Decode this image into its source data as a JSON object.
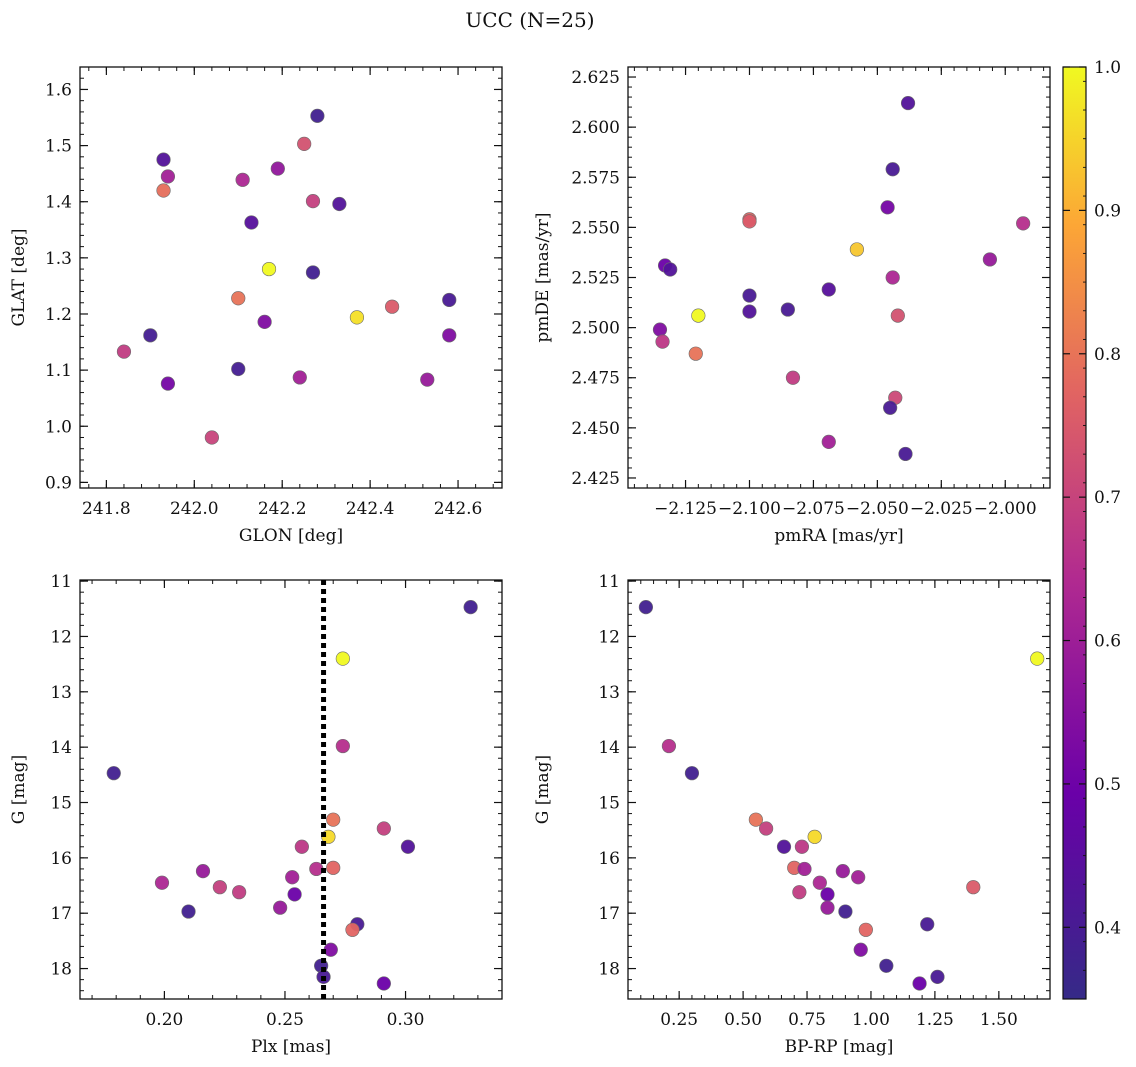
{
  "figure": {
    "suptitle": "UCC (N=25)"
  },
  "colormap": {
    "name": "plasma",
    "stops": [
      "#352a87",
      "#6a00a8",
      "#b12a90",
      "#e16462",
      "#fca636",
      "#f0f921"
    ],
    "range": [
      0.35,
      1.0
    ],
    "ticks": [
      0.4,
      0.5,
      0.6,
      0.7,
      0.8,
      0.9,
      1.0
    ],
    "tick_labels": [
      "0.4",
      "0.5",
      "0.6",
      "0.7",
      "0.8",
      "0.9",
      "1.0"
    ]
  },
  "chart_data": [
    {
      "type": "scatter",
      "xlabel": "GLON [deg]",
      "ylabel": "GLAT [deg]",
      "xlim": [
        241.74,
        242.7
      ],
      "ylim": [
        0.89,
        1.64
      ],
      "xticks": [
        241.8,
        242.0,
        242.2,
        242.4,
        242.6
      ],
      "xtick_labels": [
        "241.8",
        "242.0",
        "242.2",
        "242.4",
        "242.6"
      ],
      "yticks": [
        0.9,
        1.0,
        1.1,
        1.2,
        1.3,
        1.4,
        1.5,
        1.6
      ],
      "ytick_labels": [
        "0.9",
        "1.0",
        "1.1",
        "1.2",
        "1.3",
        "1.4",
        "1.5",
        "1.6"
      ],
      "y_inverted": false,
      "points": [
        {
          "x": 242.28,
          "y": 1.553,
          "c": 0.38
        },
        {
          "x": 242.25,
          "y": 1.503,
          "c": 0.7
        },
        {
          "x": 241.93,
          "y": 1.475,
          "c": 0.42
        },
        {
          "x": 242.19,
          "y": 1.459,
          "c": 0.55
        },
        {
          "x": 241.94,
          "y": 1.445,
          "c": 0.58
        },
        {
          "x": 242.11,
          "y": 1.439,
          "c": 0.6
        },
        {
          "x": 241.93,
          "y": 1.42,
          "c": 0.76
        },
        {
          "x": 242.27,
          "y": 1.401,
          "c": 0.66
        },
        {
          "x": 242.33,
          "y": 1.396,
          "c": 0.42
        },
        {
          "x": 242.13,
          "y": 1.363,
          "c": 0.43
        },
        {
          "x": 242.17,
          "y": 1.28,
          "c": 1.0
        },
        {
          "x": 242.27,
          "y": 1.274,
          "c": 0.38
        },
        {
          "x": 242.1,
          "y": 1.228,
          "c": 0.77
        },
        {
          "x": 242.58,
          "y": 1.225,
          "c": 0.4
        },
        {
          "x": 242.45,
          "y": 1.213,
          "c": 0.72
        },
        {
          "x": 242.37,
          "y": 1.194,
          "c": 0.96
        },
        {
          "x": 242.16,
          "y": 1.186,
          "c": 0.52
        },
        {
          "x": 241.9,
          "y": 1.162,
          "c": 0.39
        },
        {
          "x": 242.58,
          "y": 1.162,
          "c": 0.52
        },
        {
          "x": 241.84,
          "y": 1.133,
          "c": 0.65
        },
        {
          "x": 242.1,
          "y": 1.102,
          "c": 0.39
        },
        {
          "x": 242.24,
          "y": 1.087,
          "c": 0.58
        },
        {
          "x": 241.94,
          "y": 1.076,
          "c": 0.5
        },
        {
          "x": 242.53,
          "y": 1.083,
          "c": 0.56
        },
        {
          "x": 242.04,
          "y": 0.98,
          "c": 0.67
        }
      ]
    },
    {
      "type": "scatter",
      "xlabel": "pmRA [mas/yr]",
      "ylabel": "pmDE [mas/yr]",
      "xlim": [
        -2.1475,
        -1.9825
      ],
      "ylim": [
        2.42,
        2.63
      ],
      "xticks": [
        -2.125,
        -2.1,
        -2.075,
        -2.05,
        -2.025,
        -2.0
      ],
      "xtick_labels": [
        "−2.125",
        "−2.100",
        "−2.075",
        "−2.050",
        "−2.025",
        "−2.000"
      ],
      "yticks": [
        2.425,
        2.45,
        2.475,
        2.5,
        2.525,
        2.55,
        2.575,
        2.6,
        2.625
      ],
      "ytick_labels": [
        "2.425",
        "2.450",
        "2.475",
        "2.500",
        "2.525",
        "2.550",
        "2.575",
        "2.600",
        "2.625"
      ],
      "y_inverted": false,
      "points": [
        {
          "x": -2.038,
          "y": 2.612,
          "c": 0.42
        },
        {
          "x": -2.044,
          "y": 2.579,
          "c": 0.4
        },
        {
          "x": -2.046,
          "y": 2.56,
          "c": 0.5
        },
        {
          "x": -2.1,
          "y": 2.554,
          "c": 0.74
        },
        {
          "x": -2.1,
          "y": 2.553,
          "c": 0.72
        },
        {
          "x": -1.993,
          "y": 2.552,
          "c": 0.62
        },
        {
          "x": -2.058,
          "y": 2.539,
          "c": 0.92
        },
        {
          "x": -2.006,
          "y": 2.534,
          "c": 0.56
        },
        {
          "x": -2.133,
          "y": 2.531,
          "c": 0.48
        },
        {
          "x": -2.131,
          "y": 2.529,
          "c": 0.42
        },
        {
          "x": -2.044,
          "y": 2.525,
          "c": 0.6
        },
        {
          "x": -2.069,
          "y": 2.519,
          "c": 0.43
        },
        {
          "x": -2.1,
          "y": 2.516,
          "c": 0.4
        },
        {
          "x": -2.085,
          "y": 2.509,
          "c": 0.4
        },
        {
          "x": -2.1,
          "y": 2.508,
          "c": 0.42
        },
        {
          "x": -2.12,
          "y": 2.506,
          "c": 1.0
        },
        {
          "x": -2.042,
          "y": 2.506,
          "c": 0.7
        },
        {
          "x": -2.135,
          "y": 2.499,
          "c": 0.52
        },
        {
          "x": -2.134,
          "y": 2.493,
          "c": 0.64
        },
        {
          "x": -2.121,
          "y": 2.487,
          "c": 0.77
        },
        {
          "x": -2.083,
          "y": 2.475,
          "c": 0.65
        },
        {
          "x": -2.043,
          "y": 2.465,
          "c": 0.68
        },
        {
          "x": -2.045,
          "y": 2.46,
          "c": 0.4
        },
        {
          "x": -2.069,
          "y": 2.443,
          "c": 0.58
        },
        {
          "x": -2.039,
          "y": 2.437,
          "c": 0.4
        }
      ]
    },
    {
      "type": "scatter",
      "xlabel": "Plx [mas]",
      "ylabel": "G [mag]",
      "xlim": [
        0.165,
        0.34
      ],
      "ylim": [
        10.98,
        18.55
      ],
      "xticks": [
        0.2,
        0.25,
        0.3
      ],
      "xtick_labels": [
        "0.20",
        "0.25",
        "0.30"
      ],
      "yticks": [
        11,
        12,
        13,
        14,
        15,
        16,
        17,
        18
      ],
      "ytick_labels": [
        "11",
        "12",
        "13",
        "14",
        "15",
        "16",
        "17",
        "18"
      ],
      "y_inverted": true,
      "vline": {
        "x": 0.266,
        "style": "dotted"
      },
      "points": [
        {
          "x": 0.327,
          "y": 11.47,
          "c": 0.38
        },
        {
          "x": 0.274,
          "y": 12.4,
          "c": 1.0
        },
        {
          "x": 0.274,
          "y": 13.98,
          "c": 0.62
        },
        {
          "x": 0.179,
          "y": 14.47,
          "c": 0.38
        },
        {
          "x": 0.27,
          "y": 15.31,
          "c": 0.77
        },
        {
          "x": 0.291,
          "y": 15.47,
          "c": 0.66
        },
        {
          "x": 0.268,
          "y": 15.62,
          "c": 0.95
        },
        {
          "x": 0.301,
          "y": 15.8,
          "c": 0.42
        },
        {
          "x": 0.257,
          "y": 15.8,
          "c": 0.64
        },
        {
          "x": 0.27,
          "y": 16.18,
          "c": 0.74
        },
        {
          "x": 0.216,
          "y": 16.24,
          "c": 0.56
        },
        {
          "x": 0.263,
          "y": 16.2,
          "c": 0.62
        },
        {
          "x": 0.253,
          "y": 16.35,
          "c": 0.58
        },
        {
          "x": 0.199,
          "y": 16.45,
          "c": 0.6
        },
        {
          "x": 0.223,
          "y": 16.53,
          "c": 0.66
        },
        {
          "x": 0.231,
          "y": 16.62,
          "c": 0.65
        },
        {
          "x": 0.254,
          "y": 16.66,
          "c": 0.48
        },
        {
          "x": 0.248,
          "y": 16.9,
          "c": 0.56
        },
        {
          "x": 0.21,
          "y": 16.97,
          "c": 0.38
        },
        {
          "x": 0.28,
          "y": 17.2,
          "c": 0.4
        },
        {
          "x": 0.278,
          "y": 17.3,
          "c": 0.74
        },
        {
          "x": 0.269,
          "y": 17.66,
          "c": 0.52
        },
        {
          "x": 0.265,
          "y": 17.95,
          "c": 0.38
        },
        {
          "x": 0.266,
          "y": 18.15,
          "c": 0.4
        },
        {
          "x": 0.291,
          "y": 18.27,
          "c": 0.48
        }
      ]
    },
    {
      "type": "scatter",
      "xlabel": "BP-RP [mag]",
      "ylabel": "G [mag]",
      "xlim": [
        0.05,
        1.7
      ],
      "ylim": [
        10.98,
        18.55
      ],
      "xticks": [
        0.25,
        0.5,
        0.75,
        1.0,
        1.25,
        1.5
      ],
      "xtick_labels": [
        "0.25",
        "0.50",
        "0.75",
        "1.00",
        "1.25",
        "1.50"
      ],
      "yticks": [
        11,
        12,
        13,
        14,
        15,
        16,
        17,
        18
      ],
      "ytick_labels": [
        "11",
        "12",
        "13",
        "14",
        "15",
        "16",
        "17",
        "18"
      ],
      "y_inverted": true,
      "points": [
        {
          "x": 0.12,
          "y": 11.47,
          "c": 0.38
        },
        {
          "x": 1.65,
          "y": 12.4,
          "c": 1.0
        },
        {
          "x": 0.21,
          "y": 13.98,
          "c": 0.62
        },
        {
          "x": 0.3,
          "y": 14.47,
          "c": 0.38
        },
        {
          "x": 0.55,
          "y": 15.31,
          "c": 0.77
        },
        {
          "x": 0.59,
          "y": 15.47,
          "c": 0.66
        },
        {
          "x": 0.78,
          "y": 15.62,
          "c": 0.95
        },
        {
          "x": 0.66,
          "y": 15.8,
          "c": 0.42
        },
        {
          "x": 0.73,
          "y": 15.8,
          "c": 0.64
        },
        {
          "x": 0.7,
          "y": 16.18,
          "c": 0.74
        },
        {
          "x": 0.74,
          "y": 16.2,
          "c": 0.58
        },
        {
          "x": 0.89,
          "y": 16.24,
          "c": 0.56
        },
        {
          "x": 0.95,
          "y": 16.35,
          "c": 0.58
        },
        {
          "x": 0.8,
          "y": 16.45,
          "c": 0.6
        },
        {
          "x": 1.4,
          "y": 16.53,
          "c": 0.72
        },
        {
          "x": 0.72,
          "y": 16.62,
          "c": 0.65
        },
        {
          "x": 0.83,
          "y": 16.66,
          "c": 0.48
        },
        {
          "x": 0.83,
          "y": 16.9,
          "c": 0.56
        },
        {
          "x": 0.9,
          "y": 16.97,
          "c": 0.38
        },
        {
          "x": 1.22,
          "y": 17.2,
          "c": 0.4
        },
        {
          "x": 0.98,
          "y": 17.3,
          "c": 0.74
        },
        {
          "x": 0.96,
          "y": 17.66,
          "c": 0.52
        },
        {
          "x": 1.06,
          "y": 17.95,
          "c": 0.38
        },
        {
          "x": 1.26,
          "y": 18.15,
          "c": 0.4
        },
        {
          "x": 1.19,
          "y": 18.27,
          "c": 0.48
        }
      ]
    }
  ]
}
